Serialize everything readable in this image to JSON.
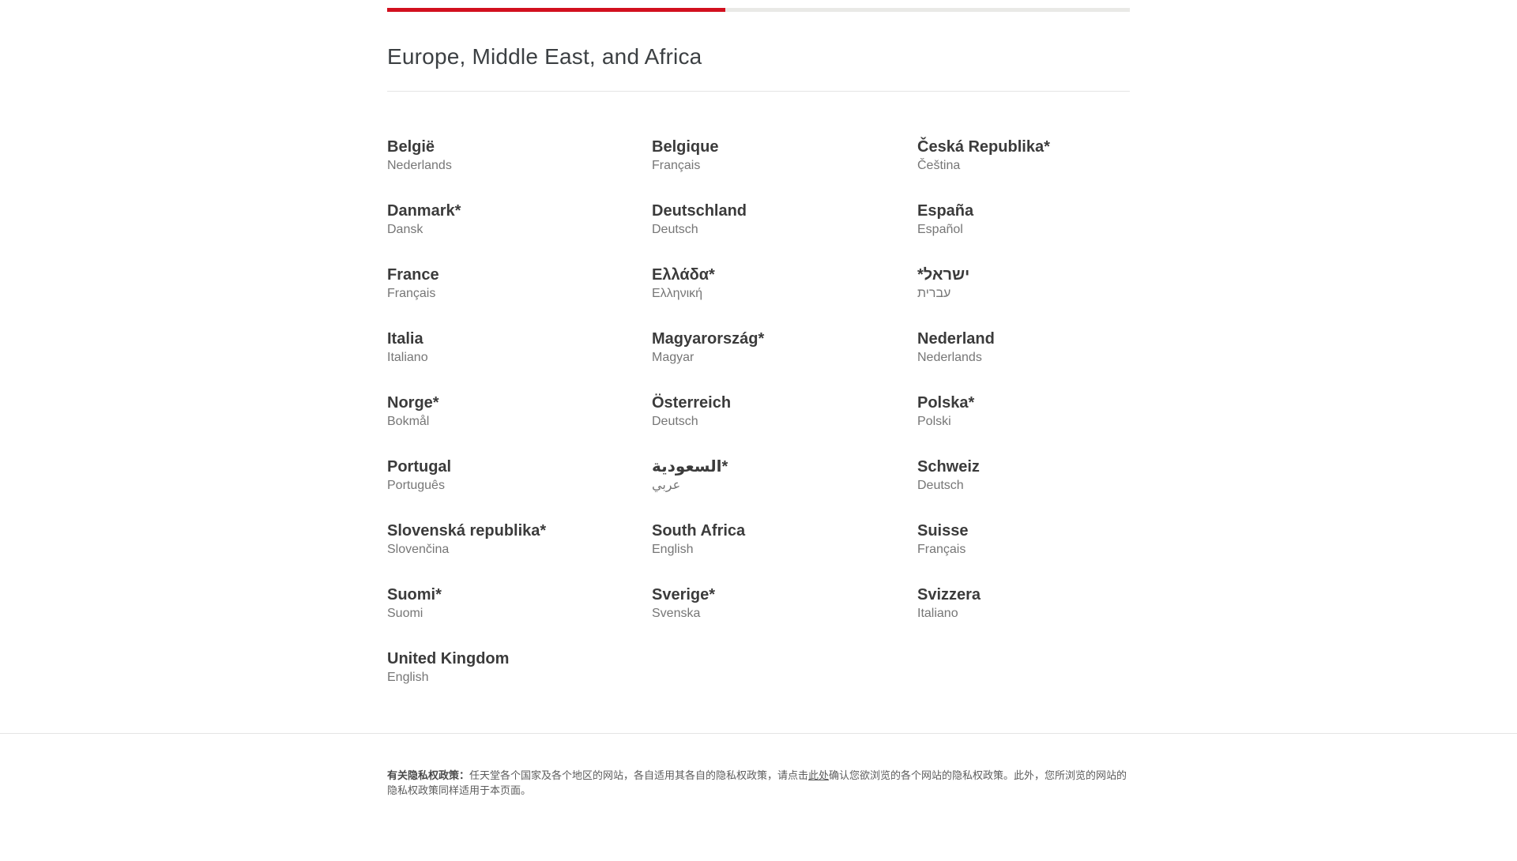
{
  "progress": {
    "percent": 45.5,
    "fill_color": "#d2101e",
    "track_color": "#e9e9e6"
  },
  "heading": "Europe, Middle East, and Africa",
  "countries": [
    {
      "name": "België",
      "language": "Nederlands"
    },
    {
      "name": "Belgique",
      "language": "Français"
    },
    {
      "name": "Česká Republika*",
      "language": "Čeština"
    },
    {
      "name": "Danmark*",
      "language": "Dansk"
    },
    {
      "name": "Deutschland",
      "language": "Deutsch"
    },
    {
      "name": "España",
      "language": "Español"
    },
    {
      "name": "France",
      "language": "Français"
    },
    {
      "name": "Ελλάδα*",
      "language": "Ελληνική"
    },
    {
      "name": "*ישראל",
      "language": "עברית"
    },
    {
      "name": "Italia",
      "language": "Italiano"
    },
    {
      "name": "Magyarország*",
      "language": "Magyar"
    },
    {
      "name": "Nederland",
      "language": "Nederlands"
    },
    {
      "name": "Norge*",
      "language": "Bokmål"
    },
    {
      "name": "Österreich",
      "language": "Deutsch"
    },
    {
      "name": "Polska*",
      "language": "Polski"
    },
    {
      "name": "Portugal",
      "language": "Português"
    },
    {
      "name": "السعودية*",
      "language": "عربي"
    },
    {
      "name": "Schweiz",
      "language": "Deutsch"
    },
    {
      "name": "Slovenská republika*",
      "language": "Slovenčina"
    },
    {
      "name": "South Africa",
      "language": "English"
    },
    {
      "name": "Suisse",
      "language": "Français"
    },
    {
      "name": "Suomi*",
      "language": "Suomi"
    },
    {
      "name": "Sverige*",
      "language": "Svenska"
    },
    {
      "name": "Svizzera",
      "language": "Italiano"
    },
    {
      "name": "United Kingdom",
      "language": "English"
    }
  ],
  "footer": {
    "label_bold": "有关隐私权政策：",
    "text_before_link": "任天堂各个国家及各个地区的网站，各自适用其各自的隐私权政策，请点击",
    "link_text": "此处",
    "text_after_link": "确认您欲浏览的各个网站的隐私权政策。此外，您所浏览的网站的隐私权政策同样适用于本页面。"
  }
}
